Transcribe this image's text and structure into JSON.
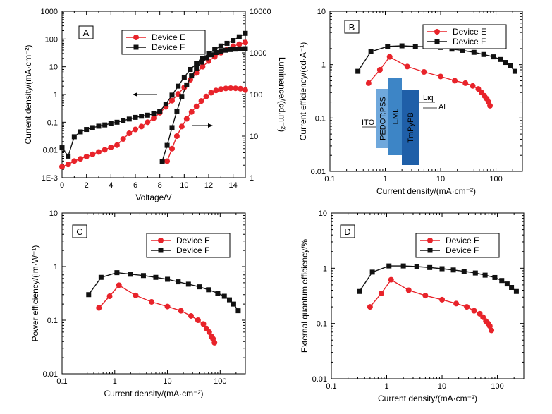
{
  "colors": {
    "device_e": "#e8232a",
    "device_f": "#111111",
    "blue_1": "#6fa8dc",
    "blue_2": "#3d85c6",
    "blue_3": "#1f5fa8"
  },
  "chart_data": [
    {
      "panel": "A",
      "type": "line",
      "xlabel": "Voltage/V",
      "ylabel": "Current density/(mA·cm⁻²)",
      "ylabel_right": "Luminance/(cd.m⁻²)",
      "xlim": [
        0,
        15
      ],
      "ylim": [
        0.001,
        1000
      ],
      "ylim_right": [
        1,
        10000
      ],
      "yscale": "log",
      "x_ticks": [
        "0",
        "2",
        "4",
        "6",
        "8",
        "10",
        "12",
        "14"
      ],
      "y_ticks": [
        "1E-3",
        "0.01",
        "0.1",
        "1",
        "10",
        "100",
        "1000"
      ],
      "y_ticks_right": [
        "1",
        "10",
        "100",
        "1000",
        "10000"
      ],
      "legend": [
        "Device E",
        "Device F"
      ],
      "legend_position": "top-center",
      "series": [
        {
          "name": "Device E",
          "quantity": "current density",
          "axis": "left",
          "x": [
            0,
            0.5,
            1,
            1.5,
            2,
            2.5,
            3,
            3.5,
            4,
            4.5,
            5,
            5.5,
            6,
            6.5,
            7,
            7.5,
            8,
            8.5,
            9,
            9.5,
            10,
            10.5,
            11,
            11.5,
            12,
            12.5,
            13,
            13.5,
            14,
            14.5,
            15
          ],
          "y": [
            0.0025,
            0.003,
            0.004,
            0.0048,
            0.0058,
            0.007,
            0.0085,
            0.0102,
            0.0125,
            0.015,
            0.025,
            0.04,
            0.055,
            0.07,
            0.1,
            0.14,
            0.22,
            0.36,
            0.6,
            1.05,
            1.8,
            3.4,
            6,
            10,
            16,
            23,
            32,
            42,
            55,
            65,
            75
          ]
        },
        {
          "name": "Device F",
          "quantity": "current density",
          "axis": "left",
          "x": [
            0,
            0.5,
            1,
            1.5,
            2,
            2.5,
            3,
            3.5,
            4,
            4.5,
            5,
            5.5,
            6,
            6.5,
            7,
            7.5,
            8,
            8.5,
            9,
            9.5,
            10,
            10.5,
            11,
            11.5,
            12,
            12.5,
            13,
            13.5,
            14,
            14.5,
            15
          ],
          "y": [
            0.012,
            0.006,
            0.03,
            0.045,
            0.055,
            0.064,
            0.072,
            0.08,
            0.09,
            0.1,
            0.115,
            0.13,
            0.15,
            0.165,
            0.18,
            0.2,
            0.25,
            0.45,
            0.95,
            2,
            4.2,
            8,
            13,
            20,
            30,
            42,
            56,
            70,
            88,
            120,
            160
          ]
        },
        {
          "name": "Device E",
          "quantity": "luminance",
          "axis": "right",
          "x": [
            8.6,
            9.0,
            9.4,
            9.8,
            10.2,
            10.6,
            11.0,
            11.4,
            11.8,
            12.2,
            12.6,
            13.0,
            13.4,
            13.8,
            14.2,
            14.6,
            15.0
          ],
          "y": [
            2.5,
            5,
            10,
            17,
            26,
            38,
            52,
            70,
            90,
            110,
            125,
            135,
            140,
            142,
            141,
            138,
            128
          ]
        },
        {
          "name": "Device F",
          "quantity": "luminance",
          "axis": "right",
          "x": [
            8.2,
            8.6,
            9.0,
            9.4,
            9.8,
            10.2,
            10.6,
            11.0,
            11.4,
            11.8,
            12.2,
            12.6,
            13.0,
            13.4,
            13.8,
            14.2,
            14.6,
            15.0
          ],
          "y": [
            2.5,
            6,
            16,
            40,
            90,
            170,
            280,
            420,
            600,
            760,
            900,
            1020,
            1100,
            1160,
            1200,
            1230,
            1250,
            1260
          ]
        }
      ],
      "annotations": [
        "arrow-left",
        "arrow-right"
      ]
    },
    {
      "panel": "B",
      "type": "line",
      "xlabel": "Current density/(mA·cm⁻²)",
      "ylabel": "Current efficiency/(cd·A⁻¹)",
      "xscale": "log",
      "yscale": "log",
      "xlim": [
        0.1,
        300
      ],
      "ylim": [
        0.01,
        10
      ],
      "x_ticks": [
        "0.1",
        "1",
        "10",
        "100"
      ],
      "y_ticks": [
        "0.01",
        "0.1",
        "1",
        "10"
      ],
      "legend": [
        "Device E",
        "Device F"
      ],
      "legend_position": "top-right",
      "series": [
        {
          "name": "Device E",
          "x": [
            0.5,
            0.8,
            1.2,
            2.5,
            5,
            10,
            18,
            28,
            38,
            48,
            55,
            62,
            68,
            73,
            78
          ],
          "y": [
            0.45,
            0.8,
            1.4,
            0.92,
            0.73,
            0.6,
            0.5,
            0.45,
            0.4,
            0.35,
            0.3,
            0.26,
            0.23,
            0.2,
            0.17
          ]
        },
        {
          "name": "Device F",
          "x": [
            0.32,
            0.55,
            1.1,
            2,
            3.5,
            6,
            10,
            16,
            25,
            40,
            60,
            90,
            120,
            150,
            180,
            220
          ],
          "y": [
            0.75,
            1.75,
            2.2,
            2.25,
            2.2,
            2.15,
            2.1,
            1.95,
            1.85,
            1.7,
            1.55,
            1.4,
            1.25,
            1.1,
            0.95,
            0.75
          ]
        }
      ],
      "inset_labels": [
        "ITO",
        "PEDOT:PSS",
        "EML",
        "TmPyPB",
        "Liq",
        "Al"
      ]
    },
    {
      "panel": "C",
      "type": "line",
      "xlabel": "Current density/(mA·cm⁻²)",
      "ylabel": "Power efficiency/(lm·W⁻¹)",
      "xscale": "log",
      "yscale": "log",
      "xlim": [
        0.1,
        300
      ],
      "ylim": [
        0.01,
        10
      ],
      "x_ticks": [
        "0.1",
        "1",
        "10",
        "100"
      ],
      "y_ticks": [
        "0.01",
        "0.1",
        "1",
        "10"
      ],
      "legend": [
        "Device E",
        "Device F"
      ],
      "legend_position": "top-right",
      "series": [
        {
          "name": "Device E",
          "x": [
            0.5,
            0.8,
            1.2,
            2.5,
            5,
            10,
            18,
            28,
            38,
            48,
            55,
            62,
            68,
            73,
            78
          ],
          "y": [
            0.17,
            0.28,
            0.45,
            0.29,
            0.22,
            0.18,
            0.15,
            0.12,
            0.1,
            0.085,
            0.07,
            0.06,
            0.05,
            0.045,
            0.038
          ]
        },
        {
          "name": "Device F",
          "x": [
            0.32,
            0.55,
            1.1,
            2,
            3.5,
            6,
            10,
            16,
            25,
            40,
            60,
            90,
            120,
            150,
            180,
            220
          ],
          "y": [
            0.3,
            0.63,
            0.77,
            0.72,
            0.68,
            0.63,
            0.58,
            0.52,
            0.47,
            0.42,
            0.37,
            0.32,
            0.28,
            0.24,
            0.2,
            0.15
          ]
        }
      ]
    },
    {
      "panel": "D",
      "type": "line",
      "xlabel": "Current density/(mA·cm⁻²)",
      "ylabel": "External quantum efficiency/%",
      "xscale": "log",
      "yscale": "log",
      "xlim": [
        0.1,
        300
      ],
      "ylim": [
        0.01,
        10
      ],
      "x_ticks": [
        "0.1",
        "1",
        "10",
        "100"
      ],
      "y_ticks": [
        "0.01",
        "0.1",
        "1",
        "10"
      ],
      "legend": [
        "Device E",
        "Device F"
      ],
      "legend_position": "top-right",
      "series": [
        {
          "name": "Device E",
          "x": [
            0.5,
            0.8,
            1.2,
            2.5,
            5,
            10,
            18,
            28,
            38,
            48,
            55,
            62,
            68,
            73,
            78
          ],
          "y": [
            0.2,
            0.35,
            0.62,
            0.4,
            0.32,
            0.27,
            0.23,
            0.2,
            0.17,
            0.15,
            0.13,
            0.11,
            0.1,
            0.09,
            0.075
          ]
        },
        {
          "name": "Device F",
          "x": [
            0.32,
            0.55,
            1.1,
            2,
            3.5,
            6,
            10,
            16,
            25,
            40,
            60,
            90,
            120,
            150,
            180,
            220
          ],
          "y": [
            0.38,
            0.85,
            1.1,
            1.1,
            1.07,
            1.03,
            0.98,
            0.93,
            0.88,
            0.82,
            0.75,
            0.68,
            0.6,
            0.52,
            0.45,
            0.38
          ]
        }
      ]
    }
  ]
}
